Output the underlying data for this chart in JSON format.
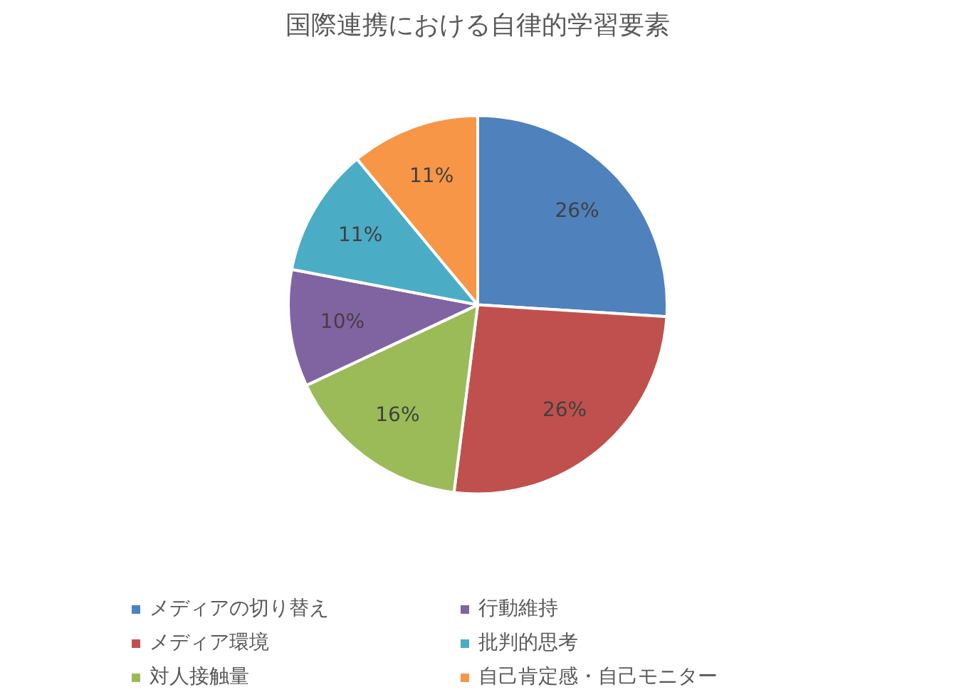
{
  "chart_data": {
    "type": "pie",
    "title": "国際連携における自律的学習要素",
    "categories": [
      "メディアの切り替え",
      "メディア環境",
      "対人接触量",
      "行動維持",
      "批判的思考",
      "自己肯定感・自己モニター"
    ],
    "values": [
      26,
      26,
      16,
      10,
      11,
      11
    ],
    "colors": [
      "#4f81bd",
      "#c0504d",
      "#9bbb59",
      "#8064a2",
      "#4bacc6",
      "#f79646"
    ],
    "value_labels": [
      "26%",
      "26%",
      "16%",
      "10%",
      "11%",
      "11%"
    ],
    "legend": "bottom"
  }
}
